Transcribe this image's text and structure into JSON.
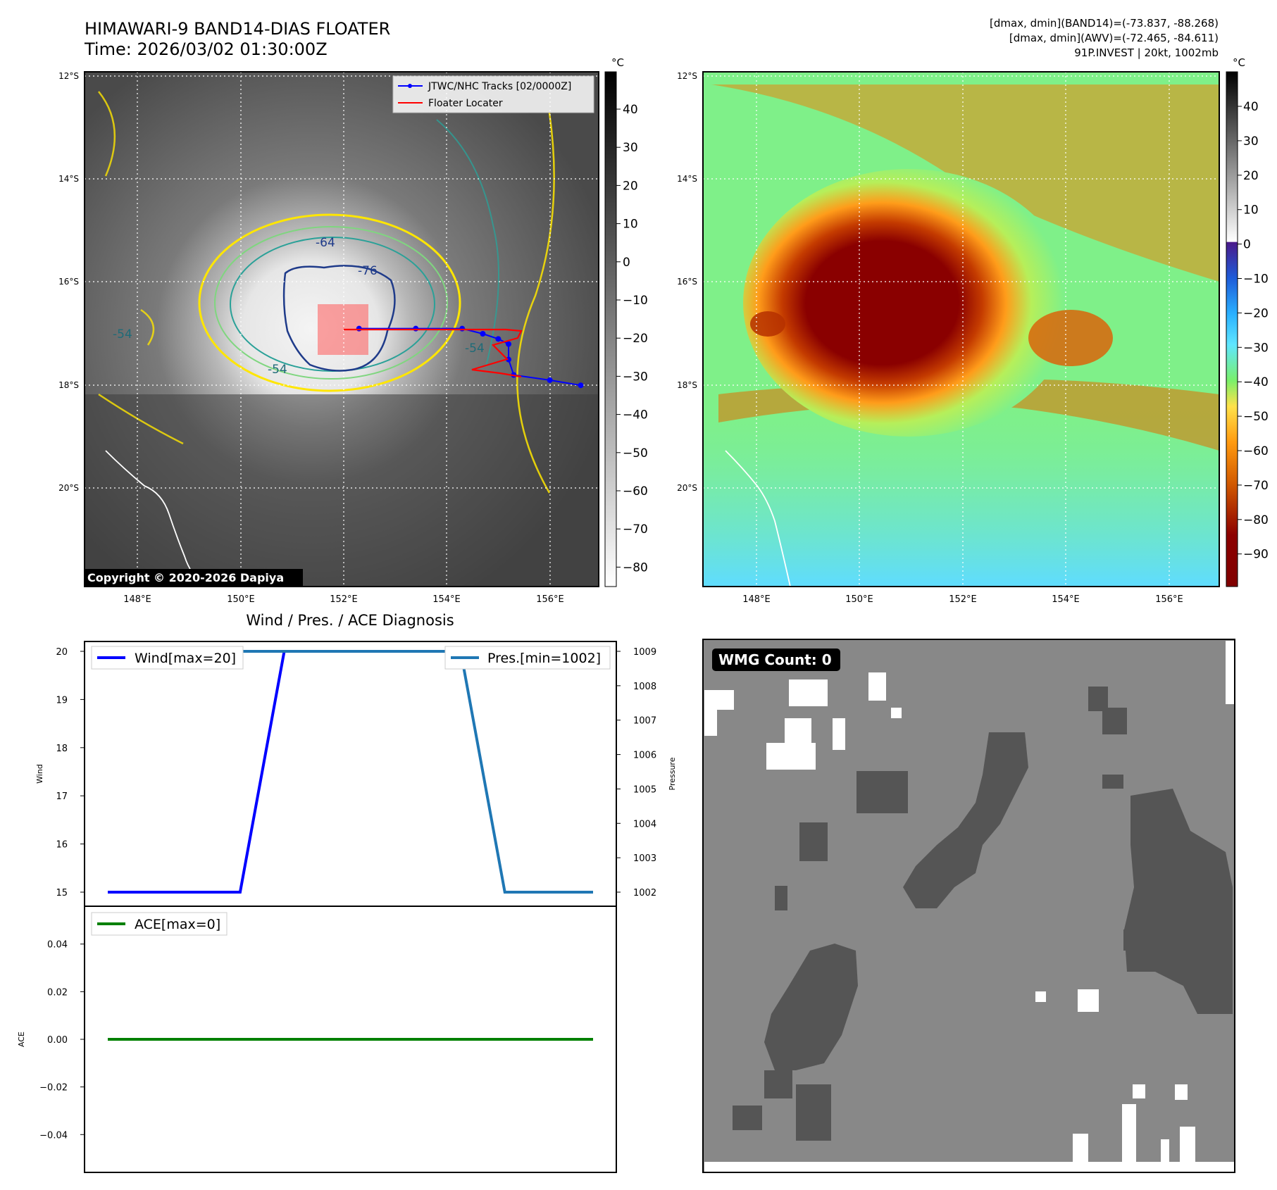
{
  "header": {
    "title_line1": "HIMAWARI-9 BAND14-DIAS FLOATER",
    "title_line2": "Time: 2026/03/02 01:30:00Z",
    "info_line1": "[dmax, dmin](BAND14)=(-73.837, -88.268)",
    "info_line2": "[dmax, dmin](AWV)=(-72.465, -84.611)",
    "info_line3": "91P.INVEST | 20kt, 1002mb"
  },
  "copyright": "Copyright © 2020-2026 Dapiya",
  "unit_label": "°C",
  "map": {
    "lat_labels": [
      "12°S",
      "14°S",
      "16°S",
      "18°S",
      "20°S"
    ],
    "lon_labels": [
      "148°E",
      "150°E",
      "152°E",
      "154°E",
      "156°E"
    ],
    "legend": [
      "JTWC/NHC Tracks [02/0000Z]",
      "Floater Locater"
    ],
    "contour_labels": [
      "-64",
      "-76",
      "-54",
      "-54",
      "-54"
    ],
    "gray_colorbar_ticks": [
      "40",
      "30",
      "20",
      "10",
      "0",
      "−10",
      "−20",
      "−30",
      "−40",
      "−50",
      "−60",
      "−70",
      "−80"
    ],
    "color_colorbar_ticks": [
      "40",
      "30",
      "20",
      "10",
      "0",
      "−10",
      "−20",
      "−30",
      "−40",
      "−50",
      "−60",
      "−70",
      "−80",
      "−90"
    ],
    "track_points": [
      {
        "lon": 156.6,
        "lat": -18.0
      },
      {
        "lon": 156.0,
        "lat": -17.9
      },
      {
        "lon": 155.3,
        "lat": -17.8
      },
      {
        "lon": 155.2,
        "lat": -17.5
      },
      {
        "lon": 155.2,
        "lat": -17.2
      },
      {
        "lon": 155.0,
        "lat": -17.1
      },
      {
        "lon": 154.7,
        "lat": -17.0
      },
      {
        "lon": 154.3,
        "lat": -16.9
      },
      {
        "lon": 153.4,
        "lat": -16.9
      },
      {
        "lon": 152.3,
        "lat": -16.9
      }
    ],
    "colors": {
      "track": "#0000ff",
      "floater": "#ff0000",
      "contour_a": "#ffe600",
      "contour_b": "#2aa198",
      "contour_c": "#1f3b8a"
    }
  },
  "diagnosis_title": "Wind / Pres. / ACE Diagnosis",
  "chart_data": [
    {
      "type": "line",
      "title": "Wind / Pres. / ACE Diagnosis",
      "ylabel": "Wind",
      "y2label": "Pressure",
      "ylim": [
        15,
        20
      ],
      "y2lim": [
        1002,
        1009
      ],
      "yticks": [
        "15",
        "16",
        "17",
        "18",
        "19",
        "20"
      ],
      "y2ticks": [
        "1002",
        "1003",
        "1004",
        "1005",
        "1006",
        "1007",
        "1008",
        "1009"
      ],
      "x": [
        0,
        1,
        2,
        3,
        4,
        5,
        6,
        7,
        8,
        9,
        10,
        11
      ],
      "series": [
        {
          "name": "Wind[max=20]",
          "axis": "left",
          "color": "#0000ff",
          "values": [
            15,
            15,
            15,
            15,
            20,
            20,
            20,
            20,
            20,
            20,
            20,
            20
          ]
        },
        {
          "name": "Pres.[min=1002]",
          "axis": "right",
          "color": "#1f77b4",
          "values": [
            1009,
            1009,
            1009,
            1009,
            1009,
            1009,
            1009,
            1009,
            1009,
            1002,
            1002,
            1002
          ]
        }
      ]
    },
    {
      "type": "line",
      "ylabel": "ACE",
      "ylim": [
        -0.055,
        0.055
      ],
      "yticks": [
        "0.04",
        "0.02",
        "0.00",
        "−0.02",
        "−0.04"
      ],
      "x": [
        0,
        1,
        2,
        3,
        4,
        5,
        6,
        7,
        8,
        9,
        10,
        11
      ],
      "series": [
        {
          "name": "ACE[max=0]",
          "color": "#008000",
          "values": [
            0,
            0,
            0,
            0,
            0,
            0,
            0,
            0,
            0,
            0,
            0,
            0
          ]
        }
      ]
    }
  ],
  "wmg": {
    "label": "WMG Count: 0"
  }
}
